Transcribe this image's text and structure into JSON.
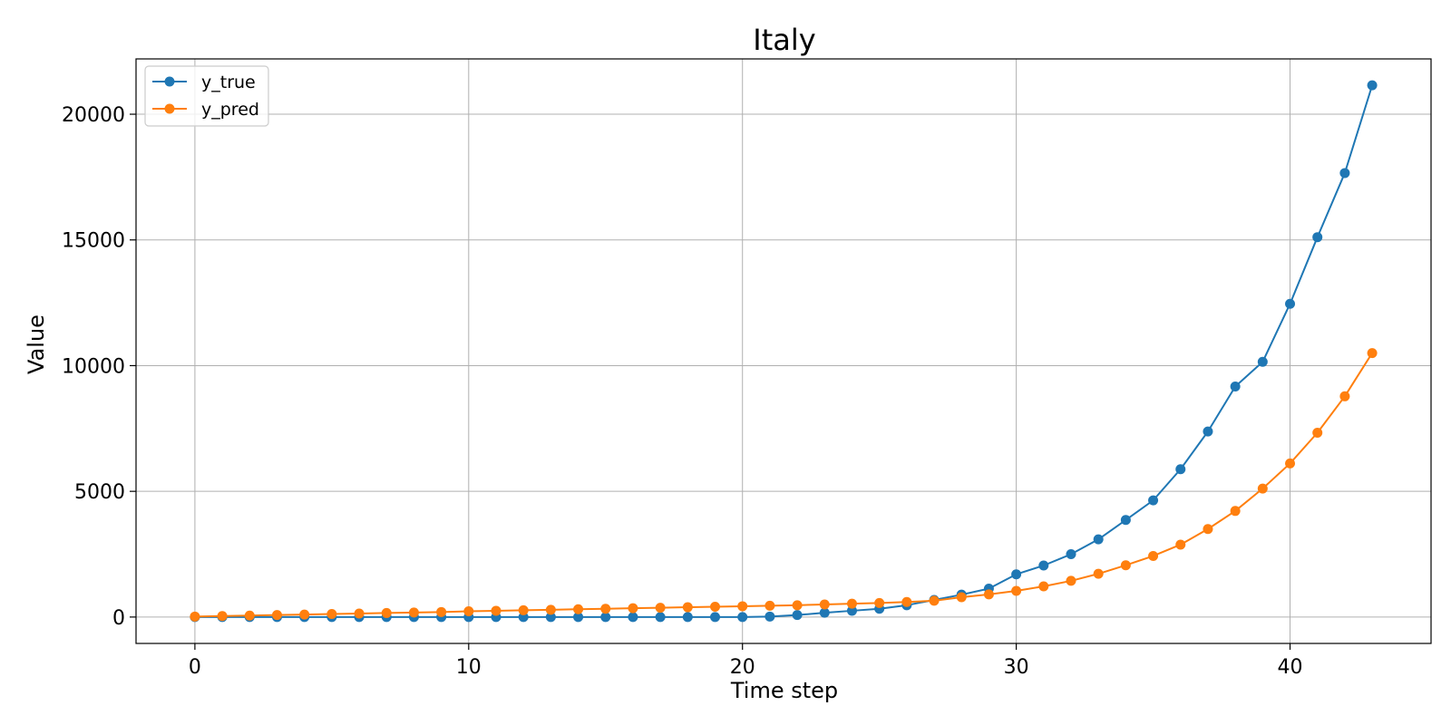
{
  "chart_data": {
    "type": "line",
    "title": "Italy",
    "xlabel": "Time step",
    "ylabel": "Value",
    "xlim": [
      -2.15,
      45.15
    ],
    "ylim": [
      -1050,
      22200
    ],
    "xticks": [
      0,
      10,
      20,
      30,
      40
    ],
    "yticks": [
      0,
      5000,
      10000,
      15000,
      20000
    ],
    "grid": true,
    "legend_position": "top-left",
    "x": [
      0,
      1,
      2,
      3,
      4,
      5,
      6,
      7,
      8,
      9,
      10,
      11,
      12,
      13,
      14,
      15,
      16,
      17,
      18,
      19,
      20,
      21,
      22,
      23,
      24,
      25,
      26,
      27,
      28,
      29,
      30,
      31,
      32,
      33,
      34,
      35,
      36,
      37,
      38,
      39,
      40,
      41,
      42,
      43
    ],
    "series": [
      {
        "name": "y_true",
        "color": "#1f77b4",
        "values": [
          0,
          0,
          0,
          0,
          0,
          0,
          0,
          0,
          0,
          0,
          0,
          0,
          0,
          0,
          0,
          0,
          0,
          0,
          0,
          0,
          0,
          20,
          80,
          170,
          250,
          330,
          470,
          680,
          890,
          1130,
          1700,
          2050,
          2500,
          3090,
          3860,
          4640,
          5880,
          7380,
          9170,
          10150,
          12460,
          15110,
          17660,
          21150
        ]
      },
      {
        "name": "y_pred",
        "color": "#ff7f0e",
        "values": [
          20,
          40,
          60,
          80,
          100,
          120,
          140,
          160,
          180,
          200,
          230,
          250,
          270,
          290,
          310,
          330,
          350,
          370,
          390,
          410,
          430,
          450,
          470,
          500,
          530,
          560,
          600,
          650,
          790,
          900,
          1040,
          1220,
          1440,
          1720,
          2060,
          2430,
          2880,
          3500,
          4220,
          5110,
          6110,
          7330,
          8780,
          10500
        ]
      }
    ]
  }
}
